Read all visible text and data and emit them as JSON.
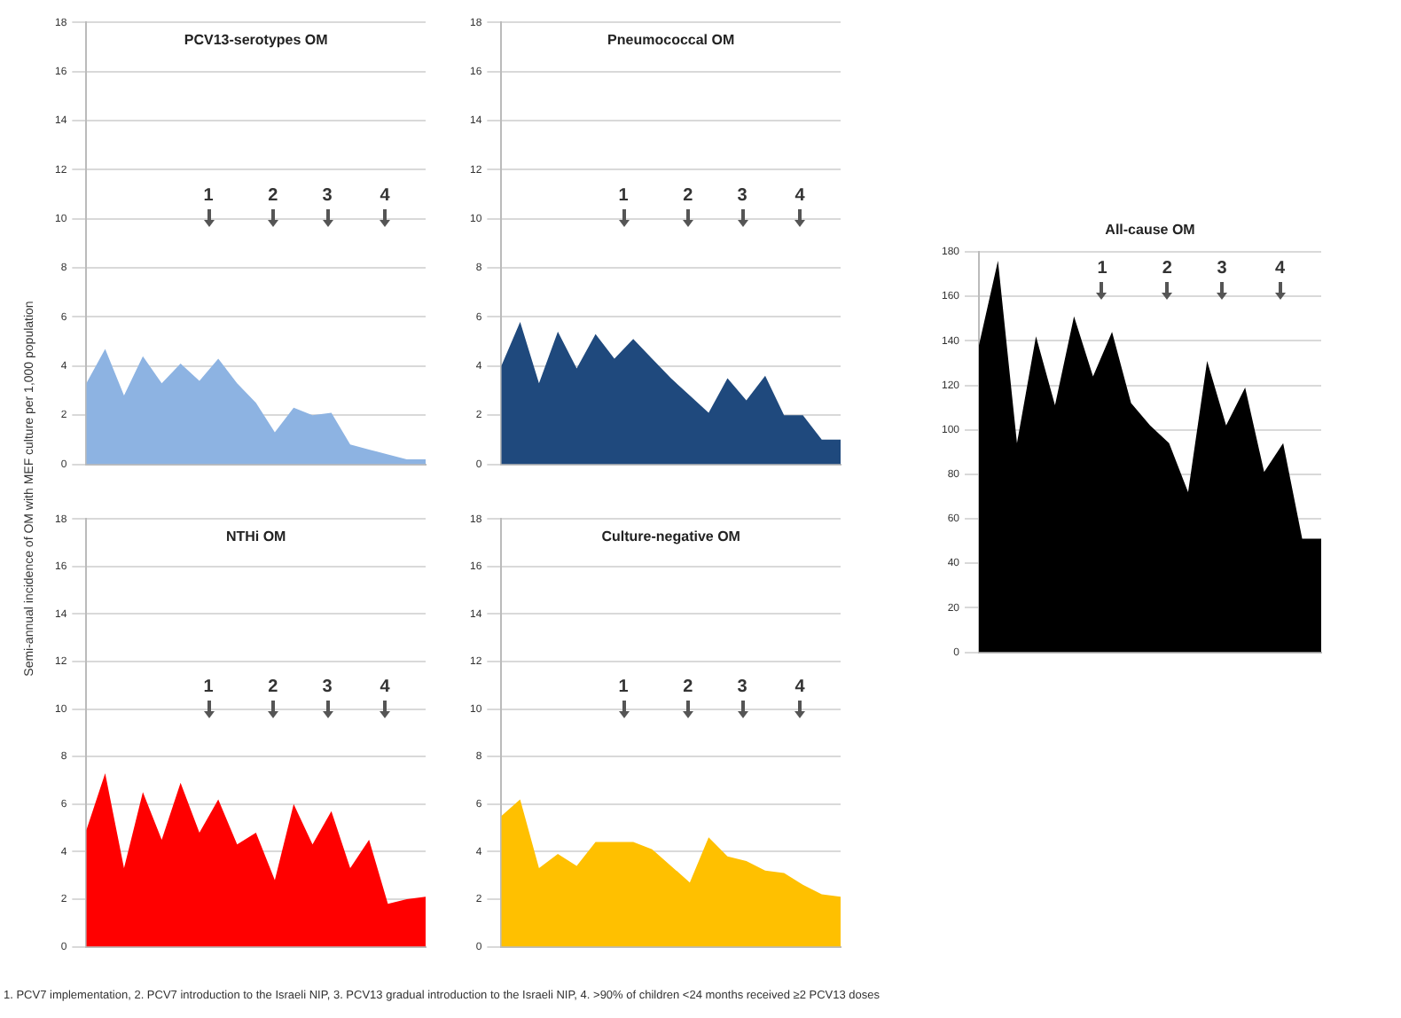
{
  "chart_data": [
    {
      "type": "area",
      "title": "PCV13-serotypes OM",
      "ylabel": "Semi-annual incidence of OM with MEF culture per 1,000 population",
      "categories": [
        null,
        null,
        null,
        null,
        null,
        null,
        null,
        null,
        null,
        null,
        null,
        null,
        null,
        null,
        null,
        null,
        null,
        null,
        null
      ],
      "series": [
        {
          "color": "#8db3e2",
          "values": [
            3.3,
            4.7,
            2.8,
            4.4,
            3.3,
            4.1,
            3.4,
            4.3,
            3.3,
            2.5,
            1.3,
            2.3,
            2.0,
            2.1,
            0.8,
            0.6,
            0.4,
            0.2,
            0.2
          ]
        }
      ],
      "ylim": [
        0,
        18
      ],
      "yticks": [
        0,
        2,
        4,
        6,
        8,
        10,
        12,
        14,
        16,
        18
      ],
      "grid": "y",
      "annotations": [
        "1",
        "2",
        "3",
        "4"
      ]
    },
    {
      "type": "area",
      "title": "Pneumococcal OM",
      "categories": [
        null,
        null,
        null,
        null,
        null,
        null,
        null,
        null,
        null,
        null,
        null,
        null,
        null,
        null,
        null,
        null,
        null,
        null,
        null
      ],
      "series": [
        {
          "color": "#1f497d",
          "values": [
            4.0,
            5.8,
            3.3,
            5.4,
            3.9,
            5.3,
            4.3,
            5.1,
            4.3,
            3.5,
            2.8,
            2.1,
            3.5,
            2.6,
            3.6,
            2.0,
            2.0,
            1.0,
            1.0
          ]
        }
      ],
      "ylim": [
        0,
        18
      ],
      "yticks": [
        0,
        2,
        4,
        6,
        8,
        10,
        12,
        14,
        16,
        18
      ],
      "grid": "y",
      "annotations": [
        "1",
        "2",
        "3",
        "4"
      ]
    },
    {
      "type": "area",
      "title": "NTHi OM",
      "categories": [
        null,
        null,
        null,
        null,
        null,
        null,
        null,
        null,
        null,
        null,
        null,
        null,
        null,
        null,
        null,
        null,
        null,
        null,
        null
      ],
      "series": [
        {
          "color": "#ff0000",
          "values": [
            4.9,
            7.3,
            3.3,
            6.5,
            4.5,
            6.9,
            4.8,
            6.2,
            4.3,
            4.8,
            2.8,
            6.0,
            4.3,
            5.7,
            3.3,
            4.5,
            1.8,
            2.0,
            2.1
          ]
        }
      ],
      "ylim": [
        0,
        18
      ],
      "yticks": [
        0,
        2,
        4,
        6,
        8,
        10,
        12,
        14,
        16,
        18
      ],
      "grid": "y",
      "annotations": [
        "1",
        "2",
        "3",
        "4",
        "1. PCV7 implementation, 2. PCV7 introduction to the Israeli NIP, 3. PCV13 gradual introduction to the Israeli NIP, 4. >90% of children <24 months received ≥2 PCV13 doses"
      ]
    },
    {
      "type": "area",
      "title": "Culture-negative OM",
      "categories": [
        null,
        null,
        null,
        null,
        null,
        null,
        null,
        null,
        null,
        null,
        null,
        null,
        null,
        null,
        null,
        null,
        null,
        null,
        null
      ],
      "series": [
        {
          "color": "#ffc000",
          "values": [
            5.5,
            6.2,
            3.3,
            3.9,
            3.4,
            4.4,
            4.4,
            4.4,
            4.1,
            3.4,
            2.7,
            4.6,
            3.8,
            3.6,
            3.2,
            3.1,
            2.6,
            2.2,
            2.1
          ]
        }
      ],
      "ylim": [
        0,
        18
      ],
      "yticks": [
        0,
        2,
        4,
        6,
        8,
        10,
        12,
        14,
        16,
        18
      ],
      "grid": "y",
      "annotations": [
        "1",
        "2",
        "3",
        "4"
      ]
    },
    {
      "type": "area",
      "title": "All-cause OM",
      "categories": [
        null,
        null,
        null,
        null,
        null,
        null,
        null,
        null,
        null,
        null,
        null,
        null,
        null,
        null,
        null,
        null,
        null,
        null,
        null
      ],
      "series": [
        {
          "color": "#000000",
          "values": [
            138,
            176,
            94,
            142,
            111,
            151,
            124,
            144,
            112,
            102,
            94,
            72,
            131,
            102,
            119,
            81,
            94,
            51,
            51
          ]
        }
      ],
      "ylim": [
        0,
        180
      ],
      "yticks": [
        0,
        20,
        40,
        60,
        80,
        100,
        120,
        140,
        160,
        180
      ],
      "grid": "y",
      "annotations": [
        "1",
        "2",
        "3",
        "4"
      ]
    }
  ]
}
